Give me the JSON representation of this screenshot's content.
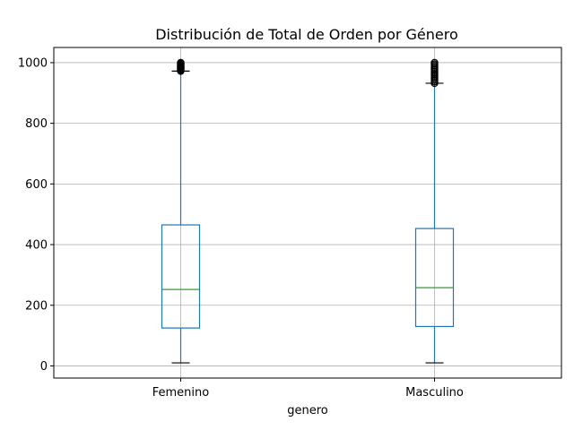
{
  "chart_data": {
    "type": "box",
    "title": "Distribución de Total de Orden por Género",
    "xlabel": "genero",
    "ylabel": "",
    "ylim": [
      -40,
      1050
    ],
    "yticks": [
      0,
      200,
      400,
      600,
      800,
      1000
    ],
    "grid": true,
    "categories": [
      "Femenino",
      "Masculino"
    ],
    "boxes": [
      {
        "category": "Femenino",
        "whisker_low": 10,
        "q1": 125,
        "median": 252,
        "q3": 465,
        "whisker_high": 972,
        "outliers_range": [
          972,
          1000
        ]
      },
      {
        "category": "Masculino",
        "whisker_low": 10,
        "q1": 130,
        "median": 258,
        "q3": 453,
        "whisker_high": 932,
        "outliers_range": [
          932,
          1000
        ]
      }
    ],
    "colors": {
      "box": "#1f77b4",
      "median": "#2ca02c",
      "grid": "#b0b0b0",
      "outlier": "#000000"
    }
  }
}
